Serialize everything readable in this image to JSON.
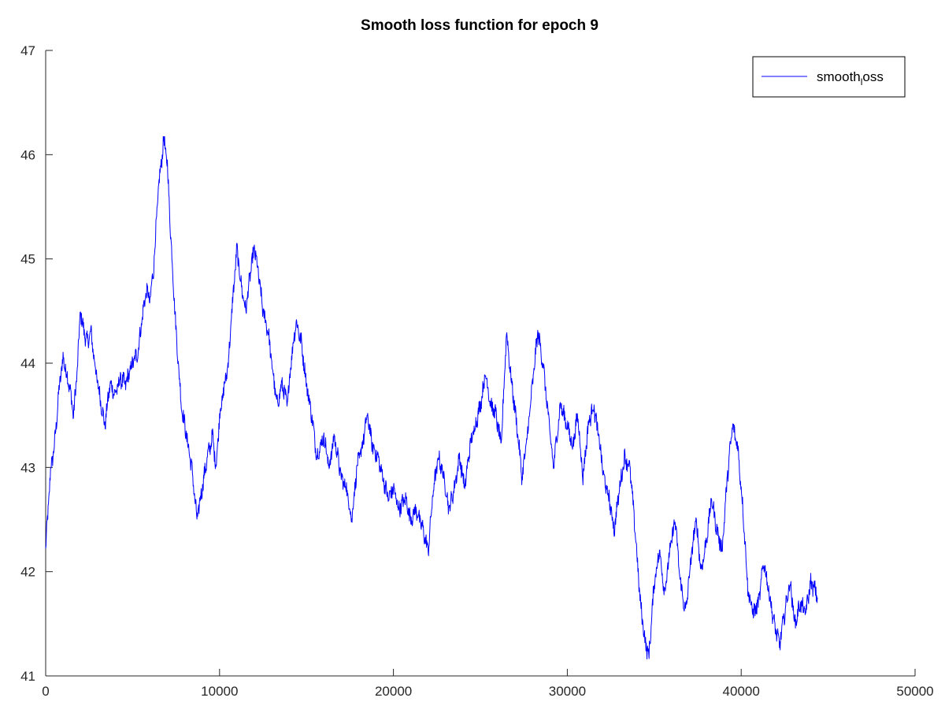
{
  "chart_data": {
    "type": "line",
    "title": "Smooth loss function for epoch 9",
    "xlabel": "",
    "ylabel": "",
    "xlim": [
      0,
      50000
    ],
    "ylim": [
      41,
      47
    ],
    "xticks": [
      0,
      10000,
      20000,
      30000,
      40000,
      50000
    ],
    "yticks": [
      41,
      42,
      43,
      44,
      45,
      46,
      47
    ],
    "grid": false,
    "legend_position": "top-right",
    "series": [
      {
        "name": "smooth_loss",
        "legend_label": "smooth",
        "legend_subscript": "l",
        "legend_suffix": "oss",
        "color": "#0000ff",
        "points": [
          [
            0,
            42.2
          ],
          [
            100,
            42.5
          ],
          [
            300,
            43.0
          ],
          [
            500,
            43.2
          ],
          [
            800,
            43.8
          ],
          [
            1000,
            44.05
          ],
          [
            1200,
            43.9
          ],
          [
            1400,
            43.75
          ],
          [
            1600,
            43.5
          ],
          [
            1800,
            43.9
          ],
          [
            2000,
            44.5
          ],
          [
            2200,
            44.3
          ],
          [
            2400,
            44.2
          ],
          [
            2600,
            44.3
          ],
          [
            2900,
            43.9
          ],
          [
            3200,
            43.6
          ],
          [
            3400,
            43.4
          ],
          [
            3700,
            43.8
          ],
          [
            4000,
            43.7
          ],
          [
            4300,
            43.85
          ],
          [
            4600,
            43.8
          ],
          [
            5000,
            44.0
          ],
          [
            5300,
            44.1
          ],
          [
            5600,
            44.5
          ],
          [
            5800,
            44.7
          ],
          [
            6000,
            44.6
          ],
          [
            6200,
            44.9
          ],
          [
            6500,
            45.7
          ],
          [
            6800,
            46.15
          ],
          [
            7000,
            45.9
          ],
          [
            7200,
            45.2
          ],
          [
            7500,
            44.3
          ],
          [
            7800,
            43.6
          ],
          [
            8100,
            43.3
          ],
          [
            8400,
            43.0
          ],
          [
            8700,
            42.5
          ],
          [
            9000,
            42.8
          ],
          [
            9300,
            43.1
          ],
          [
            9600,
            43.3
          ],
          [
            9800,
            43.0
          ],
          [
            10000,
            43.5
          ],
          [
            10300,
            43.8
          ],
          [
            10500,
            44.0
          ],
          [
            10800,
            44.7
          ],
          [
            11000,
            45.1
          ],
          [
            11200,
            44.8
          ],
          [
            11500,
            44.5
          ],
          [
            11800,
            44.9
          ],
          [
            12000,
            45.1
          ],
          [
            12200,
            44.9
          ],
          [
            12500,
            44.5
          ],
          [
            12800,
            44.3
          ],
          [
            13000,
            44.0
          ],
          [
            13300,
            43.6
          ],
          [
            13600,
            43.8
          ],
          [
            13900,
            43.6
          ],
          [
            14100,
            44.0
          ],
          [
            14400,
            44.4
          ],
          [
            14700,
            44.2
          ],
          [
            15000,
            43.8
          ],
          [
            15300,
            43.5
          ],
          [
            15600,
            43.1
          ],
          [
            16000,
            43.3
          ],
          [
            16300,
            43.0
          ],
          [
            16600,
            43.3
          ],
          [
            17000,
            42.9
          ],
          [
            17300,
            42.8
          ],
          [
            17600,
            42.5
          ],
          [
            17900,
            43.0
          ],
          [
            18200,
            43.2
          ],
          [
            18500,
            43.5
          ],
          [
            18800,
            43.2
          ],
          [
            19100,
            43.1
          ],
          [
            19400,
            42.9
          ],
          [
            19700,
            42.7
          ],
          [
            20000,
            42.8
          ],
          [
            20300,
            42.6
          ],
          [
            20700,
            42.7
          ],
          [
            21000,
            42.5
          ],
          [
            21300,
            42.6
          ],
          [
            21700,
            42.4
          ],
          [
            22000,
            42.2
          ],
          [
            22300,
            42.8
          ],
          [
            22600,
            43.1
          ],
          [
            22900,
            42.9
          ],
          [
            23200,
            42.6
          ],
          [
            23500,
            42.8
          ],
          [
            23800,
            43.1
          ],
          [
            24100,
            42.8
          ],
          [
            24400,
            43.2
          ],
          [
            24700,
            43.4
          ],
          [
            25000,
            43.6
          ],
          [
            25300,
            43.9
          ],
          [
            25600,
            43.6
          ],
          [
            25900,
            43.5
          ],
          [
            26200,
            43.2
          ],
          [
            26500,
            44.3
          ],
          [
            26800,
            43.8
          ],
          [
            27100,
            43.4
          ],
          [
            27400,
            42.9
          ],
          [
            27700,
            43.3
          ],
          [
            28000,
            43.8
          ],
          [
            28300,
            44.3
          ],
          [
            28600,
            44.0
          ],
          [
            28900,
            43.5
          ],
          [
            29200,
            43.0
          ],
          [
            29600,
            43.6
          ],
          [
            30000,
            43.4
          ],
          [
            30300,
            43.2
          ],
          [
            30600,
            43.5
          ],
          [
            30900,
            42.9
          ],
          [
            31200,
            43.4
          ],
          [
            31500,
            43.6
          ],
          [
            31800,
            43.3
          ],
          [
            32100,
            42.9
          ],
          [
            32400,
            42.7
          ],
          [
            32700,
            42.4
          ],
          [
            33000,
            42.8
          ],
          [
            33300,
            43.1
          ],
          [
            33600,
            43.0
          ],
          [
            33900,
            42.4
          ],
          [
            34200,
            41.7
          ],
          [
            34500,
            41.3
          ],
          [
            34700,
            41.2
          ],
          [
            35000,
            41.9
          ],
          [
            35300,
            42.2
          ],
          [
            35600,
            41.8
          ],
          [
            35900,
            42.2
          ],
          [
            36200,
            42.5
          ],
          [
            36500,
            41.9
          ],
          [
            36800,
            41.6
          ],
          [
            37100,
            42.1
          ],
          [
            37400,
            42.5
          ],
          [
            37700,
            42.0
          ],
          [
            38000,
            42.3
          ],
          [
            38300,
            42.7
          ],
          [
            38600,
            42.4
          ],
          [
            38900,
            42.2
          ],
          [
            39200,
            42.9
          ],
          [
            39500,
            43.4
          ],
          [
            39800,
            43.2
          ],
          [
            40100,
            42.6
          ],
          [
            40400,
            41.8
          ],
          [
            40700,
            41.6
          ],
          [
            41000,
            41.7
          ],
          [
            41300,
            42.1
          ],
          [
            41600,
            41.8
          ],
          [
            41900,
            41.5
          ],
          [
            42200,
            41.3
          ],
          [
            42500,
            41.6
          ],
          [
            42800,
            41.9
          ],
          [
            43100,
            41.5
          ],
          [
            43400,
            41.7
          ],
          [
            43700,
            41.6
          ],
          [
            44000,
            41.9
          ],
          [
            44300,
            41.8
          ],
          [
            44400,
            41.75
          ]
        ]
      }
    ]
  }
}
